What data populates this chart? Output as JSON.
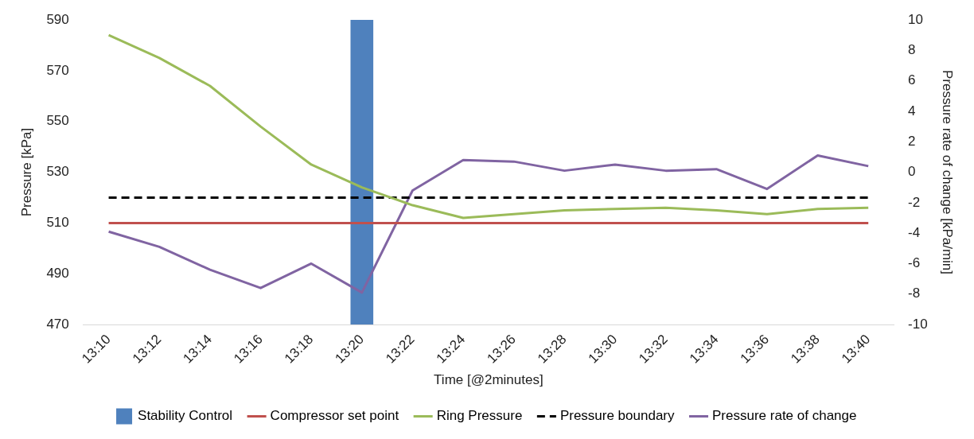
{
  "chart_data": {
    "type": "line",
    "xlabel": "Time [@2minutes]",
    "ylabel": "Pressure [kPa]",
    "y2label": "Pressure rate of change [kPa/min]",
    "categories": [
      "13:10",
      "13:12",
      "13:14",
      "13:16",
      "13:18",
      "13:20",
      "13:22",
      "13:24",
      "13:26",
      "13:28",
      "13:30",
      "13:32",
      "13:34",
      "13:36",
      "13:38",
      "13:40"
    ],
    "series": [
      {
        "name": "Stability Control",
        "type": "bar",
        "color": "#4f81bd",
        "values": [
          null,
          null,
          null,
          null,
          null,
          590,
          null,
          null,
          null,
          null,
          null,
          null,
          null,
          null,
          null,
          null
        ]
      },
      {
        "name": "Compressor set point",
        "color": "#c0504d",
        "values": [
          510,
          510,
          510,
          510,
          510,
          510,
          510,
          510,
          510,
          510,
          510,
          510,
          510,
          510,
          510,
          510
        ]
      },
      {
        "name": "Ring Pressure",
        "color": "#9bbb59",
        "values": [
          584,
          575,
          564,
          548,
          533,
          524,
          517,
          512,
          513.5,
          515,
          515.5,
          516,
          515,
          513.5,
          515.5,
          516
        ]
      },
      {
        "name": "Pressure boundary",
        "color": "#000000",
        "line_style": "dashed",
        "values": [
          520,
          520,
          520,
          520,
          520,
          520,
          520,
          520,
          520,
          520,
          520,
          520,
          520,
          520,
          520,
          520
        ]
      },
      {
        "name": "Pressure rate of change",
        "color": "#8064a2",
        "axis": "y2",
        "values": [
          -3.9,
          -4.9,
          -6.4,
          -7.6,
          -6.0,
          -7.9,
          -1.2,
          0.8,
          0.7,
          0.1,
          0.5,
          0.1,
          0.2,
          -1.1,
          1.1,
          0.4
        ]
      }
    ],
    "ylim": [
      470,
      590
    ],
    "yticks": [
      470,
      490,
      510,
      530,
      550,
      570,
      590
    ],
    "y2lim": [
      -10,
      10
    ],
    "y2ticks": [
      -10,
      -8,
      -6,
      -4,
      -2,
      0,
      2,
      4,
      6,
      8,
      10
    ],
    "legend": "bottom",
    "marker": "none",
    "grid": false
  }
}
